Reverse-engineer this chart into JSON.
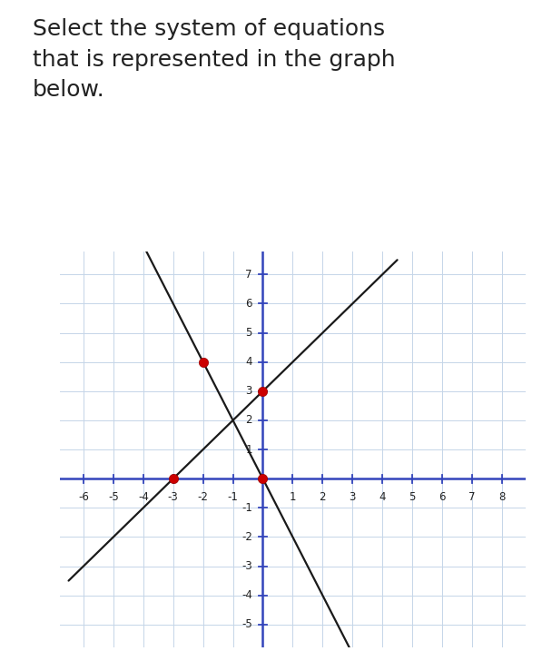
{
  "title": "Select the system of equations\nthat is represented in the graph\nbelow.",
  "title_fontsize": 18,
  "xlim": [
    -6.8,
    8.8
  ],
  "ylim": [
    -5.8,
    7.8
  ],
  "xticks": [
    -6,
    -5,
    -4,
    -3,
    -2,
    -1,
    1,
    2,
    3,
    4,
    5,
    6,
    7,
    8
  ],
  "yticks": [
    -5,
    -4,
    -3,
    -2,
    -1,
    1,
    2,
    3,
    4,
    5,
    6,
    7
  ],
  "line1_slope": -2,
  "line1_intercept": 0,
  "line2_slope": 1,
  "line2_intercept": 3,
  "line_color": "#1a1a1a",
  "line_width": 1.6,
  "red_dots": [
    [
      -2,
      4
    ],
    [
      -3,
      0
    ],
    [
      0,
      3
    ],
    [
      0,
      0
    ]
  ],
  "dot_color": "#cc0000",
  "dot_size": 55,
  "axis_color": "#3344bb",
  "grid_color": "#c5d5e8",
  "bg_color": "#ffffff",
  "text_color": "#222222"
}
